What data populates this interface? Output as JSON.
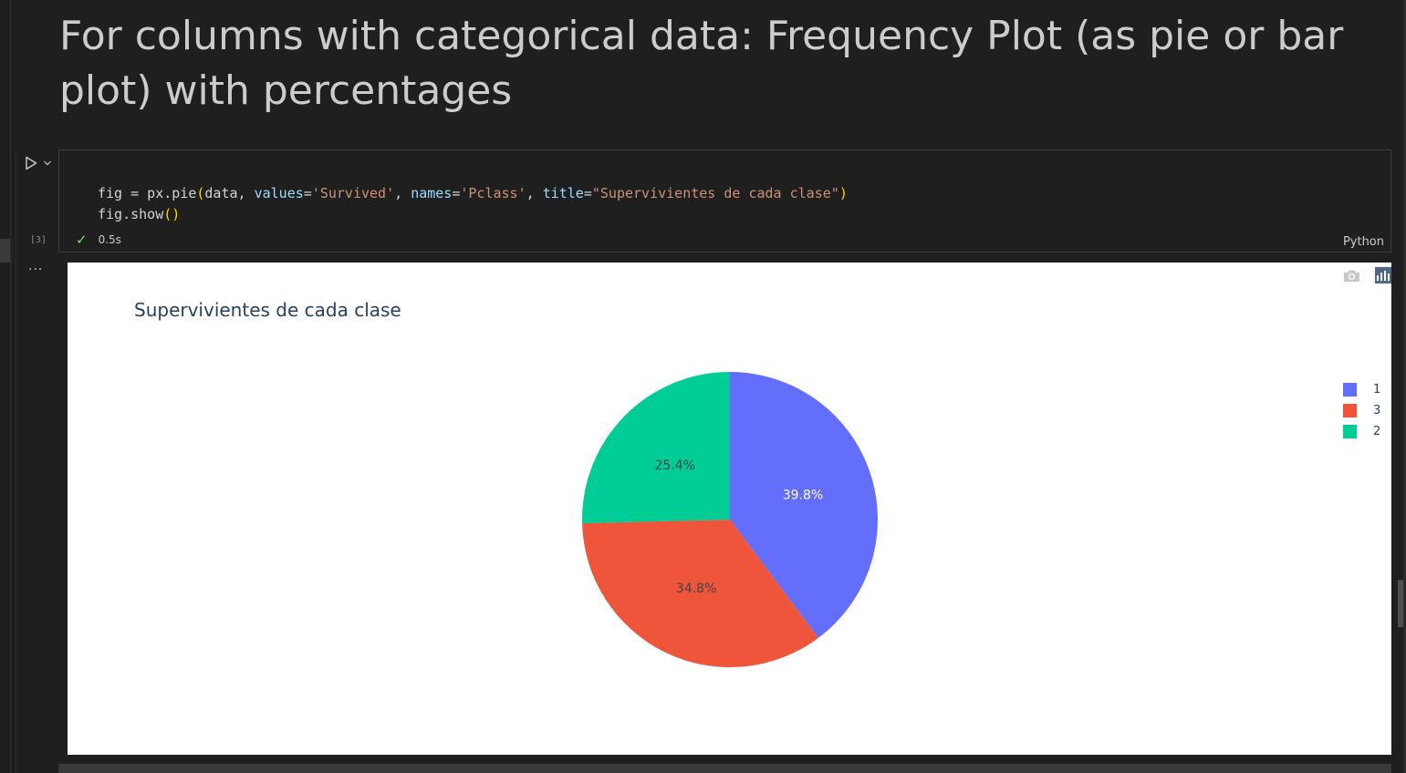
{
  "markdown": {
    "heading": "For columns with categorical data: Frequency Plot (as pie or bar plot) with percentages"
  },
  "code_cell": {
    "execution_count": "[3]",
    "duration": "0.5s",
    "language": "Python",
    "line2": "fig.show()"
  },
  "output": {
    "more": "···"
  },
  "chart_data": {
    "type": "pie",
    "title": "Supervivientes de cada clase",
    "slices": [
      {
        "label": "1",
        "percent": 39.8,
        "text": "39.8%",
        "color": "#636efa"
      },
      {
        "label": "3",
        "percent": 34.8,
        "text": "34.8%",
        "color": "#ef553b"
      },
      {
        "label": "2",
        "percent": 25.4,
        "text": "25.4%",
        "color": "#00cc96"
      }
    ],
    "legend_placement": "top-right"
  }
}
